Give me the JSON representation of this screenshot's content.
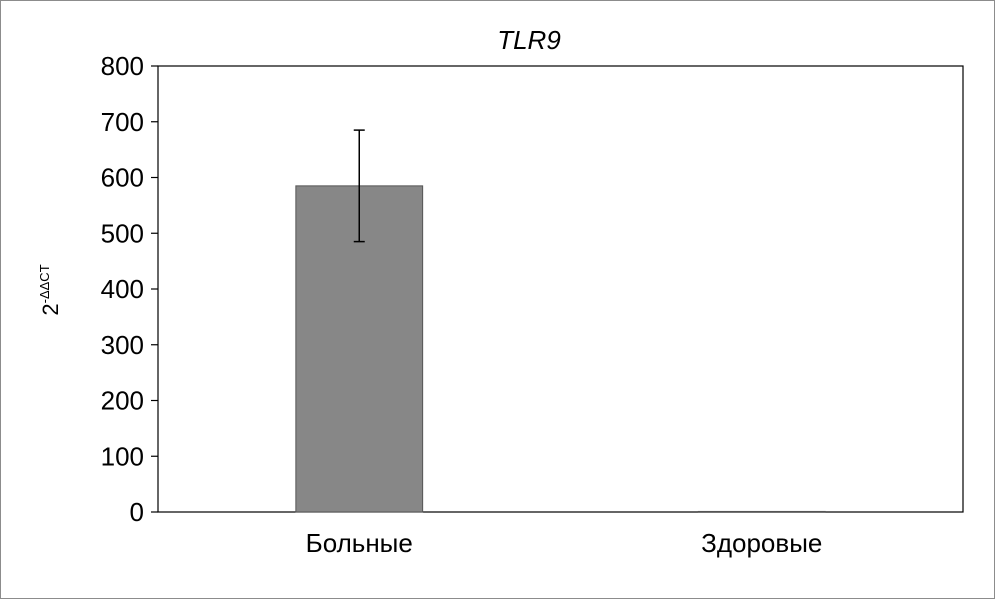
{
  "chart_data": {
    "type": "bar",
    "title": "TLR9",
    "xlabel": "",
    "ylabel": {
      "base": "2",
      "superscript": "-ΔΔCT"
    },
    "categories": [
      "Больные",
      "Здоровые"
    ],
    "values": [
      585,
      1
    ],
    "errors": [
      100,
      0
    ],
    "ylim": [
      0,
      800
    ],
    "yticks": [
      0,
      100,
      200,
      300,
      400,
      500,
      600,
      700,
      800
    ],
    "grid": false,
    "legend": "none",
    "bar_color": "#878787",
    "bar_edge_color": "#555555"
  }
}
